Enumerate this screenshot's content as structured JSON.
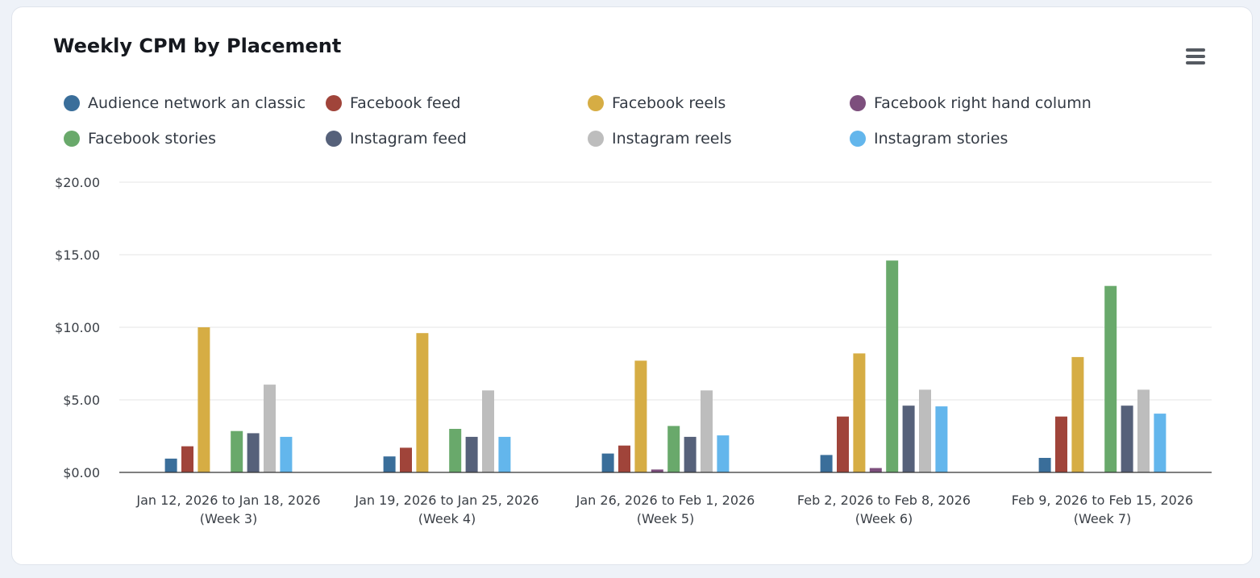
{
  "chart_data": {
    "type": "bar",
    "title": "Weekly CPM by Placement",
    "xlabel": "",
    "ylabel": "",
    "ylim": [
      0,
      20
    ],
    "yticks": [
      "$0.00",
      "$5.00",
      "$10.00",
      "$15.00",
      "$20.00"
    ],
    "yticks_values": [
      0,
      5,
      10,
      15,
      20
    ],
    "grid": true,
    "legend_position": "top",
    "categories": [
      [
        "Jan 12, 2026 to Jan 18, 2026",
        "(Week 3)"
      ],
      [
        "Jan 19, 2026 to Jan 25, 2026",
        "(Week 4)"
      ],
      [
        "Jan 26, 2026 to Feb 1, 2026",
        "(Week 5)"
      ],
      [
        "Feb 2, 2026 to Feb 8, 2026",
        "(Week 6)"
      ],
      [
        "Feb 9, 2026 to Feb 15, 2026",
        "(Week 7)"
      ]
    ],
    "series": [
      {
        "name": "Audience network an classic",
        "color": "#3a6e9a",
        "values": [
          0.95,
          1.1,
          1.3,
          1.2,
          1.0
        ]
      },
      {
        "name": "Facebook feed",
        "color": "#a0443a",
        "values": [
          1.8,
          1.7,
          1.85,
          3.85,
          3.85
        ]
      },
      {
        "name": "Facebook reels",
        "color": "#d6ad44",
        "values": [
          10.0,
          9.6,
          7.7,
          8.2,
          7.95
        ]
      },
      {
        "name": "Facebook right hand column",
        "color": "#7d4f7d",
        "values": [
          0,
          0,
          0.2,
          0.3,
          0
        ]
      },
      {
        "name": "Facebook stories",
        "color": "#69a96b",
        "values": [
          2.85,
          3.0,
          3.2,
          14.6,
          12.85
        ]
      },
      {
        "name": "Instagram feed",
        "color": "#56617a",
        "values": [
          2.7,
          2.45,
          2.45,
          4.6,
          4.6
        ]
      },
      {
        "name": "Instagram reels",
        "color": "#bdbdbd",
        "values": [
          6.05,
          5.65,
          5.65,
          5.7,
          5.7
        ]
      },
      {
        "name": "Instagram stories",
        "color": "#63b6ec",
        "values": [
          2.45,
          2.45,
          2.55,
          4.55,
          4.05
        ]
      }
    ]
  }
}
